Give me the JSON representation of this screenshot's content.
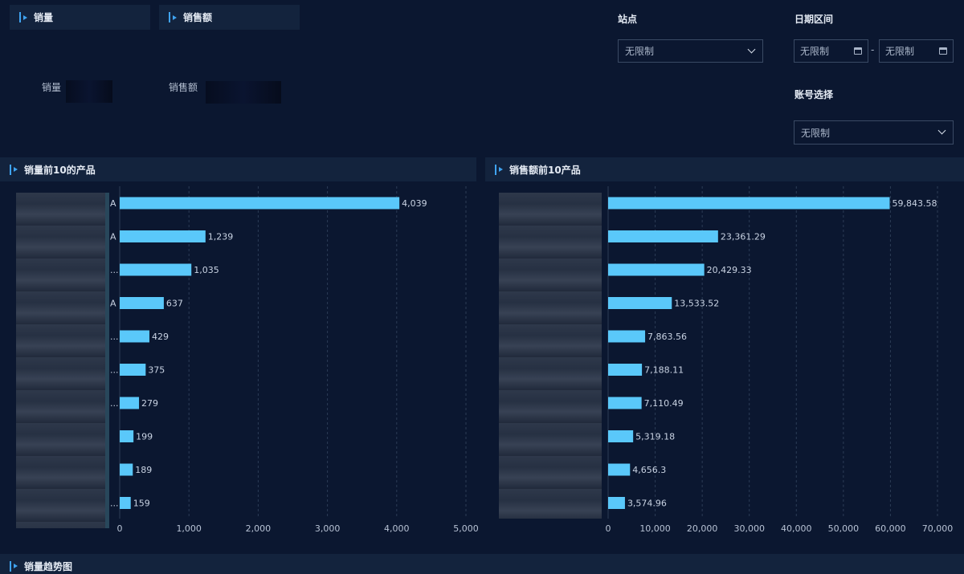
{
  "tabs": [
    {
      "label": "销量"
    },
    {
      "label": "销售额"
    }
  ],
  "kpis": {
    "sales_volume_label": "销量",
    "sales_amount_label": "销售额"
  },
  "filters": {
    "site_label": "站点",
    "site_value": "无限制",
    "date_label": "日期区间",
    "date_start": "无限制",
    "date_separator": "-",
    "date_end": "无限制",
    "account_label": "账号选择",
    "account_value": "无限制"
  },
  "sections": {
    "top_volume": "销量前10的产品",
    "top_amount": "销售额前10产品",
    "trend": "销量趋势图"
  },
  "colors": {
    "bar": "#5ac8fa",
    "background": "#0b1730",
    "accent": "#3fa3f0"
  },
  "chart_data": [
    {
      "type": "bar",
      "orientation": "horizontal",
      "title": "销量前10的产品",
      "values": [
        4039,
        1239,
        1035,
        637,
        429,
        375,
        279,
        199,
        189,
        159
      ],
      "value_labels": [
        "4,039",
        "1,239",
        "1,035",
        "637",
        "429",
        "375",
        "279",
        "199",
        "189",
        "159"
      ],
      "xlim": [
        0,
        5000
      ],
      "x_ticks": [
        0,
        1000,
        2000,
        3000,
        4000,
        5000
      ],
      "x_tick_labels": [
        "0",
        "1,000",
        "2,000",
        "3,000",
        "4,000",
        "5,000"
      ],
      "category_suffixes": [
        "A",
        "A",
        "...",
        "A",
        "...",
        "...",
        "...",
        "",
        "",
        "..."
      ],
      "grid": "vertical-dashed"
    },
    {
      "type": "bar",
      "orientation": "horizontal",
      "title": "销售额前10产品",
      "values": [
        59843.58,
        23361.29,
        20429.33,
        13533.52,
        7863.56,
        7188.11,
        7110.49,
        5319.18,
        4656.3,
        3574.96
      ],
      "value_labels": [
        "59,843.58",
        "23,361.29",
        "20,429.33",
        "13,533.52",
        "7,863.56",
        "7,188.11",
        "7,110.49",
        "5,319.18",
        "4,656.3",
        "3,574.96"
      ],
      "xlim": [
        0,
        70000
      ],
      "x_ticks": [
        0,
        10000,
        20000,
        30000,
        40000,
        50000,
        60000,
        70000
      ],
      "x_tick_labels": [
        "0",
        "10,000",
        "20,000",
        "30,000",
        "40,000",
        "50,000",
        "60,000",
        "70,000"
      ],
      "grid": "vertical-dashed"
    }
  ]
}
